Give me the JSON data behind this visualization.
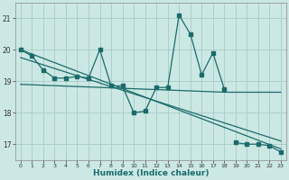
{
  "xlabel": "Humidex (Indice chaleur)",
  "ylabel": "",
  "bg_color": "#cce8e4",
  "grid_color": "#aacfcc",
  "line_color": "#1a6b6b",
  "xlim": [
    -0.5,
    23.5
  ],
  "ylim": [
    16.5,
    21.5
  ],
  "yticks": [
    17,
    18,
    19,
    20,
    21
  ],
  "xticks": [
    0,
    1,
    2,
    3,
    4,
    5,
    6,
    7,
    8,
    9,
    10,
    11,
    12,
    13,
    14,
    15,
    16,
    17,
    18,
    19,
    20,
    21,
    22,
    23
  ],
  "line1_x": [
    0,
    1,
    2,
    3,
    4,
    5,
    6,
    7,
    8,
    9,
    10,
    11,
    12,
    13,
    14,
    15,
    16,
    17,
    18
  ],
  "line1_y": [
    20.0,
    19.8,
    19.35,
    19.1,
    19.1,
    19.15,
    19.1,
    20.0,
    18.85,
    18.85,
    18.0,
    18.05,
    18.8,
    18.8,
    21.1,
    20.5,
    19.2,
    19.9,
    18.75
  ],
  "line2_x": [
    0,
    23
  ],
  "line2_y": [
    20.0,
    16.85
  ],
  "line3_x": [
    0,
    18,
    23
  ],
  "line3_y": [
    18.9,
    18.65,
    18.65
  ],
  "line4_x": [
    0,
    23
  ],
  "line4_y": [
    19.75,
    17.1
  ],
  "line5_x": [
    19,
    20,
    21,
    22,
    23
  ],
  "line5_y": [
    17.05,
    17.0,
    17.0,
    16.95,
    16.75
  ]
}
